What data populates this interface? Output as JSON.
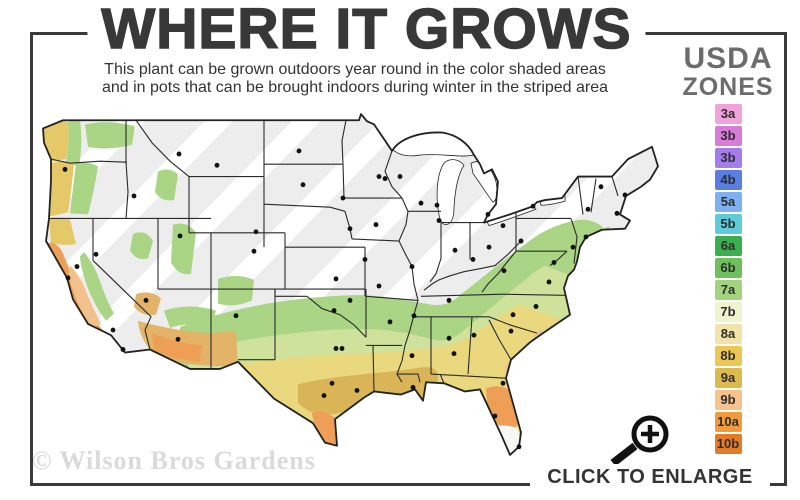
{
  "header": {
    "title": "WHERE IT GROWS",
    "subtitle_line1": "This plant can be grown outdoors year round in the color shaded areas",
    "subtitle_line2": "and in pots that can be brought indoors during winter in the striped area"
  },
  "legend": {
    "title_line1": "USDA",
    "title_line2": "ZONES",
    "zones": [
      {
        "label": "3a",
        "color": "#f0a3da"
      },
      {
        "label": "3b",
        "color": "#d97bd9"
      },
      {
        "label": "3b",
        "color": "#a47cec"
      },
      {
        "label": "4b",
        "color": "#5a7de0"
      },
      {
        "label": "5a",
        "color": "#7fb0f0"
      },
      {
        "label": "5b",
        "color": "#5ecbdb"
      },
      {
        "label": "6a",
        "color": "#3cae50"
      },
      {
        "label": "6b",
        "color": "#6ec05c"
      },
      {
        "label": "7a",
        "color": "#a4d37e"
      },
      {
        "label": "7b",
        "color": "#eff3d2"
      },
      {
        "label": "8a",
        "color": "#f2e3a8"
      },
      {
        "label": "8b",
        "color": "#ecc753"
      },
      {
        "label": "9a",
        "color": "#dcba4e"
      },
      {
        "label": "9b",
        "color": "#f7c28b"
      },
      {
        "label": "10a",
        "color": "#f29b3c"
      },
      {
        "label": "10b",
        "color": "#e27c26"
      }
    ]
  },
  "map": {
    "colors": {
      "gray": "#ededed",
      "stripe": "#ffffff",
      "outline": "#222222",
      "stateline": "#2a2a2a",
      "green": "#a9d584",
      "green_light": "#cfe29c",
      "yellow": "#ead87e",
      "gold": "#d9b557",
      "orange": "#ef9f55",
      "peach": "#f3c18c",
      "tan": "#e3b468",
      "wa_yellow": "#e5c868",
      "pale_fl": "#f7f7f4",
      "lake": "#ffffff",
      "dot": "#111111"
    },
    "city_dots": [
      [
        25,
        58
      ],
      [
        94,
        84
      ],
      [
        139,
        43
      ],
      [
        177,
        54
      ],
      [
        259,
        40
      ],
      [
        263,
        73
      ],
      [
        303,
        86
      ],
      [
        339,
        65
      ],
      [
        345,
        67
      ],
      [
        336,
        112
      ],
      [
        310,
        116
      ],
      [
        28,
        164
      ],
      [
        37,
        153
      ],
      [
        56,
        141
      ],
      [
        140,
        123
      ],
      [
        106,
        186
      ],
      [
        73,
        215
      ],
      [
        83,
        234
      ],
      [
        138,
        224
      ],
      [
        196,
        201
      ],
      [
        216,
        119
      ],
      [
        214,
        138
      ],
      [
        296,
        165
      ],
      [
        325,
        146
      ],
      [
        372,
        153
      ],
      [
        339,
        172
      ],
      [
        310,
        186
      ],
      [
        294,
        196
      ],
      [
        302,
        233
      ],
      [
        296,
        233
      ],
      [
        292,
        267
      ],
      [
        284,
        279
      ],
      [
        317,
        274
      ],
      [
        350,
        207
      ],
      [
        373,
        271
      ],
      [
        372,
        240
      ],
      [
        374,
        201
      ],
      [
        409,
        186
      ],
      [
        409,
        223
      ],
      [
        414,
        238
      ],
      [
        434,
        220
      ],
      [
        463,
        267
      ],
      [
        455,
        299
      ],
      [
        479,
        329
      ],
      [
        471,
        216
      ],
      [
        473,
        200
      ],
      [
        496,
        192
      ],
      [
        509,
        168
      ],
      [
        514,
        149
      ],
      [
        533,
        134
      ],
      [
        546,
        124
      ],
      [
        548,
        97
      ],
      [
        577,
        101
      ],
      [
        585,
        83
      ],
      [
        561,
        75
      ],
      [
        493,
        94
      ],
      [
        481,
        128
      ],
      [
        463,
        113
      ],
      [
        449,
        134
      ],
      [
        433,
        146
      ],
      [
        415,
        137
      ],
      [
        448,
        102
      ],
      [
        399,
        108
      ],
      [
        397,
        93
      ],
      [
        381,
        91
      ],
      [
        464,
        157
      ],
      [
        360,
        65
      ]
    ]
  },
  "footer": {
    "enlarge_label": "CLICK TO ENLARGE",
    "watermark": "© Wilson Bros Gardens"
  }
}
